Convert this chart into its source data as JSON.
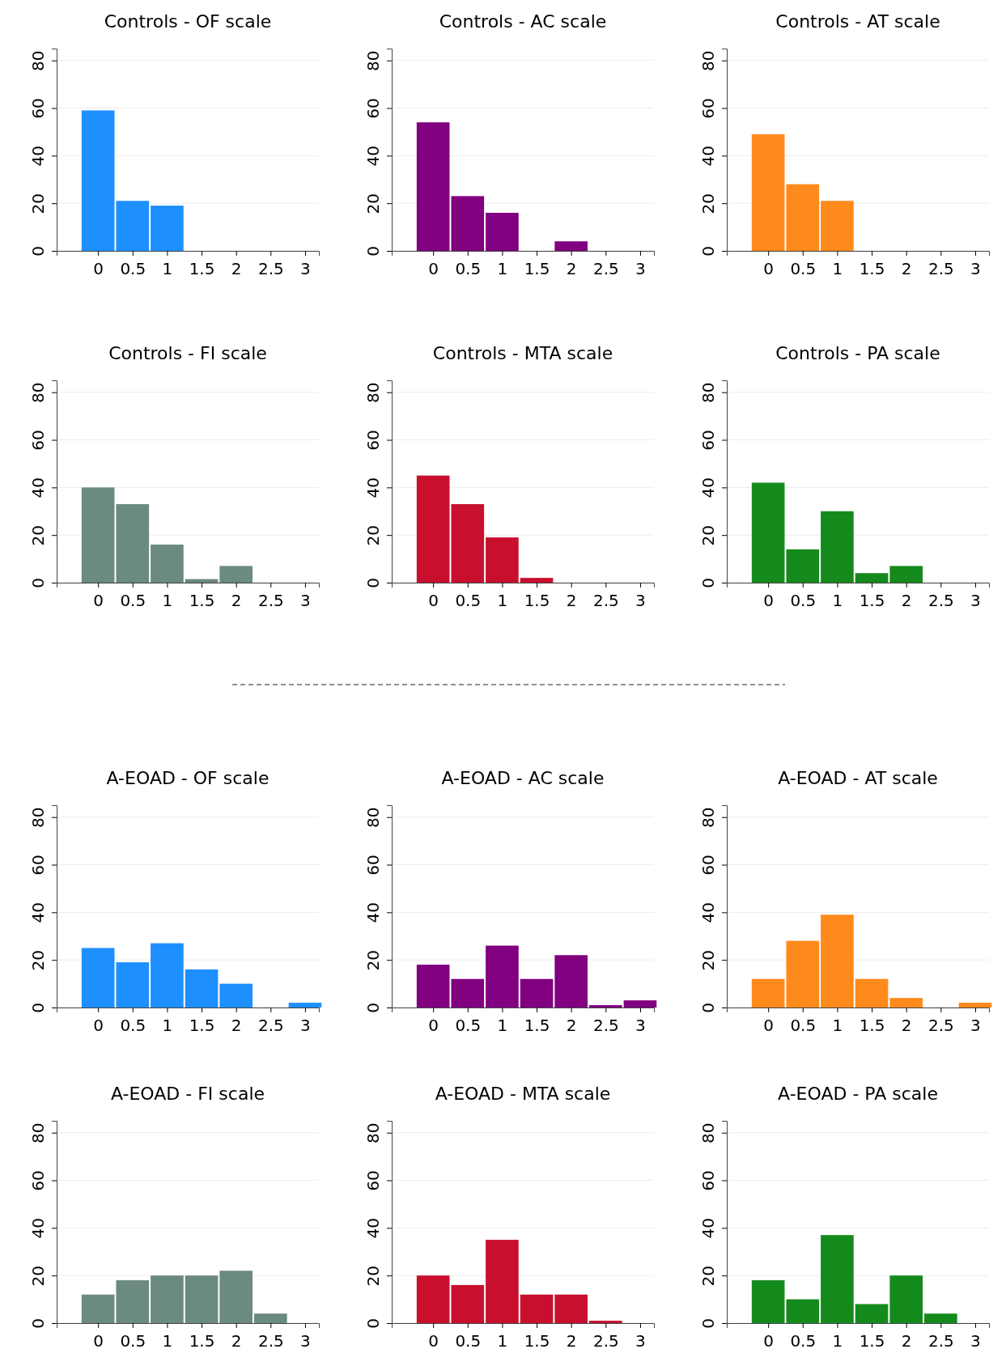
{
  "chart_data": [
    {
      "type": "histogram",
      "title": "Controls - OF scale",
      "bins": [
        -0.25,
        0.25,
        0.75,
        1.25,
        1.75,
        2.25,
        2.75,
        3.25
      ],
      "values": [
        59,
        21,
        19,
        0,
        0,
        0,
        0
      ],
      "color": "#1e8fff",
      "xlim": [
        -0.6,
        3.2
      ],
      "xticks": [
        0,
        0.5,
        1,
        1.5,
        2,
        2.5,
        3
      ],
      "ylim": [
        0,
        85
      ],
      "yticks": [
        0,
        20,
        40,
        60,
        80
      ],
      "grid": "y"
    },
    {
      "type": "histogram",
      "title": "Controls - AC scale",
      "bins": [
        -0.25,
        0.25,
        0.75,
        1.25,
        1.75,
        2.25,
        2.75,
        3.25
      ],
      "values": [
        54,
        23,
        16,
        0,
        4,
        0,
        0
      ],
      "color": "#800080",
      "xlim": [
        -0.6,
        3.2
      ],
      "xticks": [
        0,
        0.5,
        1,
        1.5,
        2,
        2.5,
        3
      ],
      "ylim": [
        0,
        85
      ],
      "yticks": [
        0,
        20,
        40,
        60,
        80
      ],
      "grid": "y"
    },
    {
      "type": "histogram",
      "title": "Controls - AT scale",
      "bins": [
        -0.25,
        0.25,
        0.75,
        1.25,
        1.75,
        2.25,
        2.75,
        3.25
      ],
      "values": [
        49,
        28,
        21,
        0,
        0,
        0,
        0
      ],
      "color": "#ff8a1c",
      "xlim": [
        -0.6,
        3.2
      ],
      "xticks": [
        0,
        0.5,
        1,
        1.5,
        2,
        2.5,
        3
      ],
      "ylim": [
        0,
        85
      ],
      "yticks": [
        0,
        20,
        40,
        60,
        80
      ],
      "grid": "y"
    },
    {
      "type": "histogram",
      "title": "Controls - FI scale",
      "bins": [
        -0.25,
        0.25,
        0.75,
        1.25,
        1.75,
        2.25,
        2.75,
        3.25
      ],
      "values": [
        40,
        33,
        16,
        1.5,
        7,
        0,
        0
      ],
      "color": "#6b8a80",
      "xlim": [
        -0.6,
        3.2
      ],
      "xticks": [
        0,
        0.5,
        1,
        1.5,
        2,
        2.5,
        3
      ],
      "ylim": [
        0,
        85
      ],
      "yticks": [
        0,
        20,
        40,
        60,
        80
      ],
      "grid": "y"
    },
    {
      "type": "histogram",
      "title": "Controls - MTA scale",
      "bins": [
        -0.25,
        0.25,
        0.75,
        1.25,
        1.75,
        2.25,
        2.75,
        3.25
      ],
      "values": [
        45,
        33,
        19,
        2,
        0,
        0,
        0
      ],
      "color": "#c8102e",
      "xlim": [
        -0.6,
        3.2
      ],
      "xticks": [
        0,
        0.5,
        1,
        1.5,
        2,
        2.5,
        3
      ],
      "ylim": [
        0,
        85
      ],
      "yticks": [
        0,
        20,
        40,
        60,
        80
      ],
      "grid": "y"
    },
    {
      "type": "histogram",
      "title": "Controls - PA scale",
      "bins": [
        -0.25,
        0.25,
        0.75,
        1.25,
        1.75,
        2.25,
        2.75,
        3.25
      ],
      "values": [
        42,
        14,
        30,
        4,
        7,
        0,
        0
      ],
      "color": "#158a1c",
      "xlim": [
        -0.6,
        3.2
      ],
      "xticks": [
        0,
        0.5,
        1,
        1.5,
        2,
        2.5,
        3
      ],
      "ylim": [
        0,
        85
      ],
      "yticks": [
        0,
        20,
        40,
        60,
        80
      ],
      "grid": "y"
    },
    {
      "type": "histogram",
      "title": "A-EOAD - OF scale",
      "bins": [
        -0.25,
        0.25,
        0.75,
        1.25,
        1.75,
        2.25,
        2.75,
        3.25
      ],
      "values": [
        25,
        19,
        27,
        16,
        10,
        0,
        2
      ],
      "color": "#1e8fff",
      "xlim": [
        -0.6,
        3.2
      ],
      "xticks": [
        0,
        0.5,
        1,
        1.5,
        2,
        2.5,
        3
      ],
      "ylim": [
        0,
        85
      ],
      "yticks": [
        0,
        20,
        40,
        60,
        80
      ],
      "grid": "y"
    },
    {
      "type": "histogram",
      "title": "A-EOAD - AC scale",
      "bins": [
        -0.25,
        0.25,
        0.75,
        1.25,
        1.75,
        2.25,
        2.75,
        3.25
      ],
      "values": [
        18,
        12,
        26,
        12,
        22,
        1,
        3
      ],
      "color": "#800080",
      "xlim": [
        -0.6,
        3.2
      ],
      "xticks": [
        0,
        0.5,
        1,
        1.5,
        2,
        2.5,
        3
      ],
      "ylim": [
        0,
        85
      ],
      "yticks": [
        0,
        20,
        40,
        60,
        80
      ],
      "grid": "y"
    },
    {
      "type": "histogram",
      "title": "A-EOAD - AT scale",
      "bins": [
        -0.25,
        0.25,
        0.75,
        1.25,
        1.75,
        2.25,
        2.75,
        3.25
      ],
      "values": [
        12,
        28,
        39,
        12,
        4,
        0,
        2
      ],
      "color": "#ff8a1c",
      "xlim": [
        -0.6,
        3.2
      ],
      "xticks": [
        0,
        0.5,
        1,
        1.5,
        2,
        2.5,
        3
      ],
      "ylim": [
        0,
        85
      ],
      "yticks": [
        0,
        20,
        40,
        60,
        80
      ],
      "grid": "y"
    },
    {
      "type": "histogram",
      "title": "A-EOAD - FI scale",
      "bins": [
        -0.25,
        0.25,
        0.75,
        1.25,
        1.75,
        2.25,
        2.75,
        3.25
      ],
      "values": [
        12,
        18,
        20,
        20,
        22,
        4,
        0
      ],
      "color": "#6b8a80",
      "xlim": [
        -0.6,
        3.2
      ],
      "xticks": [
        0,
        0.5,
        1,
        1.5,
        2,
        2.5,
        3
      ],
      "ylim": [
        0,
        85
      ],
      "yticks": [
        0,
        20,
        40,
        60,
        80
      ],
      "grid": "y"
    },
    {
      "type": "histogram",
      "title": "A-EOAD - MTA scale",
      "bins": [
        -0.25,
        0.25,
        0.75,
        1.25,
        1.75,
        2.25,
        2.75,
        3.25
      ],
      "values": [
        20,
        16,
        35,
        12,
        12,
        1,
        0
      ],
      "color": "#c8102e",
      "xlim": [
        -0.6,
        3.2
      ],
      "xticks": [
        0,
        0.5,
        1,
        1.5,
        2,
        2.5,
        3
      ],
      "ylim": [
        0,
        85
      ],
      "yticks": [
        0,
        20,
        40,
        60,
        80
      ],
      "grid": "y"
    },
    {
      "type": "histogram",
      "title": "A-EOAD - PA scale",
      "bins": [
        -0.25,
        0.25,
        0.75,
        1.25,
        1.75,
        2.25,
        2.75,
        3.25
      ],
      "values": [
        18,
        10,
        37,
        8,
        20,
        4,
        0
      ],
      "color": "#158a1c",
      "xlim": [
        -0.6,
        3.2
      ],
      "xticks": [
        0,
        0.5,
        1,
        1.5,
        2,
        2.5,
        3
      ],
      "ylim": [
        0,
        85
      ],
      "yticks": [
        0,
        20,
        40,
        60,
        80
      ],
      "grid": "y"
    }
  ]
}
